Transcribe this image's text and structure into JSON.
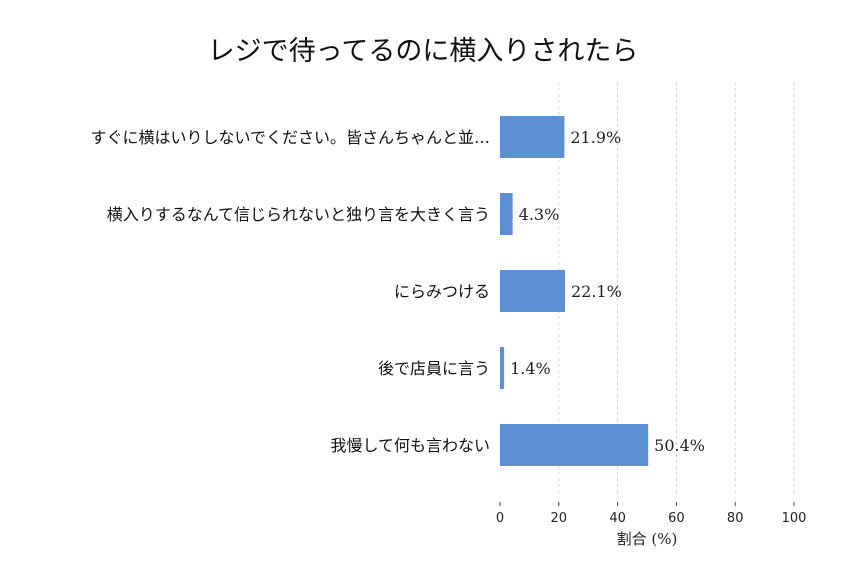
{
  "chart_data": {
    "type": "bar",
    "orientation": "horizontal",
    "title": "レジで待ってるのに横入りされたら",
    "xlabel": "割合 (%)",
    "ylabel": "",
    "xlim": [
      0,
      100
    ],
    "xticks": [
      0,
      20,
      40,
      60,
      80,
      100
    ],
    "grid": "vertical-dashed",
    "bar_color": "#5b8fd1",
    "categories": [
      "すぐに横はいりしないでください。皆さんちゃんと並…",
      "横入りするなんて信じられないと独り言を大きく言う",
      "にらみつける",
      "後で店員に言う",
      "我慢して何も言わない"
    ],
    "values": [
      21.9,
      4.3,
      22.1,
      1.4,
      50.4
    ],
    "value_labels": [
      "21.9%",
      "4.3%",
      "22.1%",
      "1.4%",
      "50.4%"
    ]
  }
}
